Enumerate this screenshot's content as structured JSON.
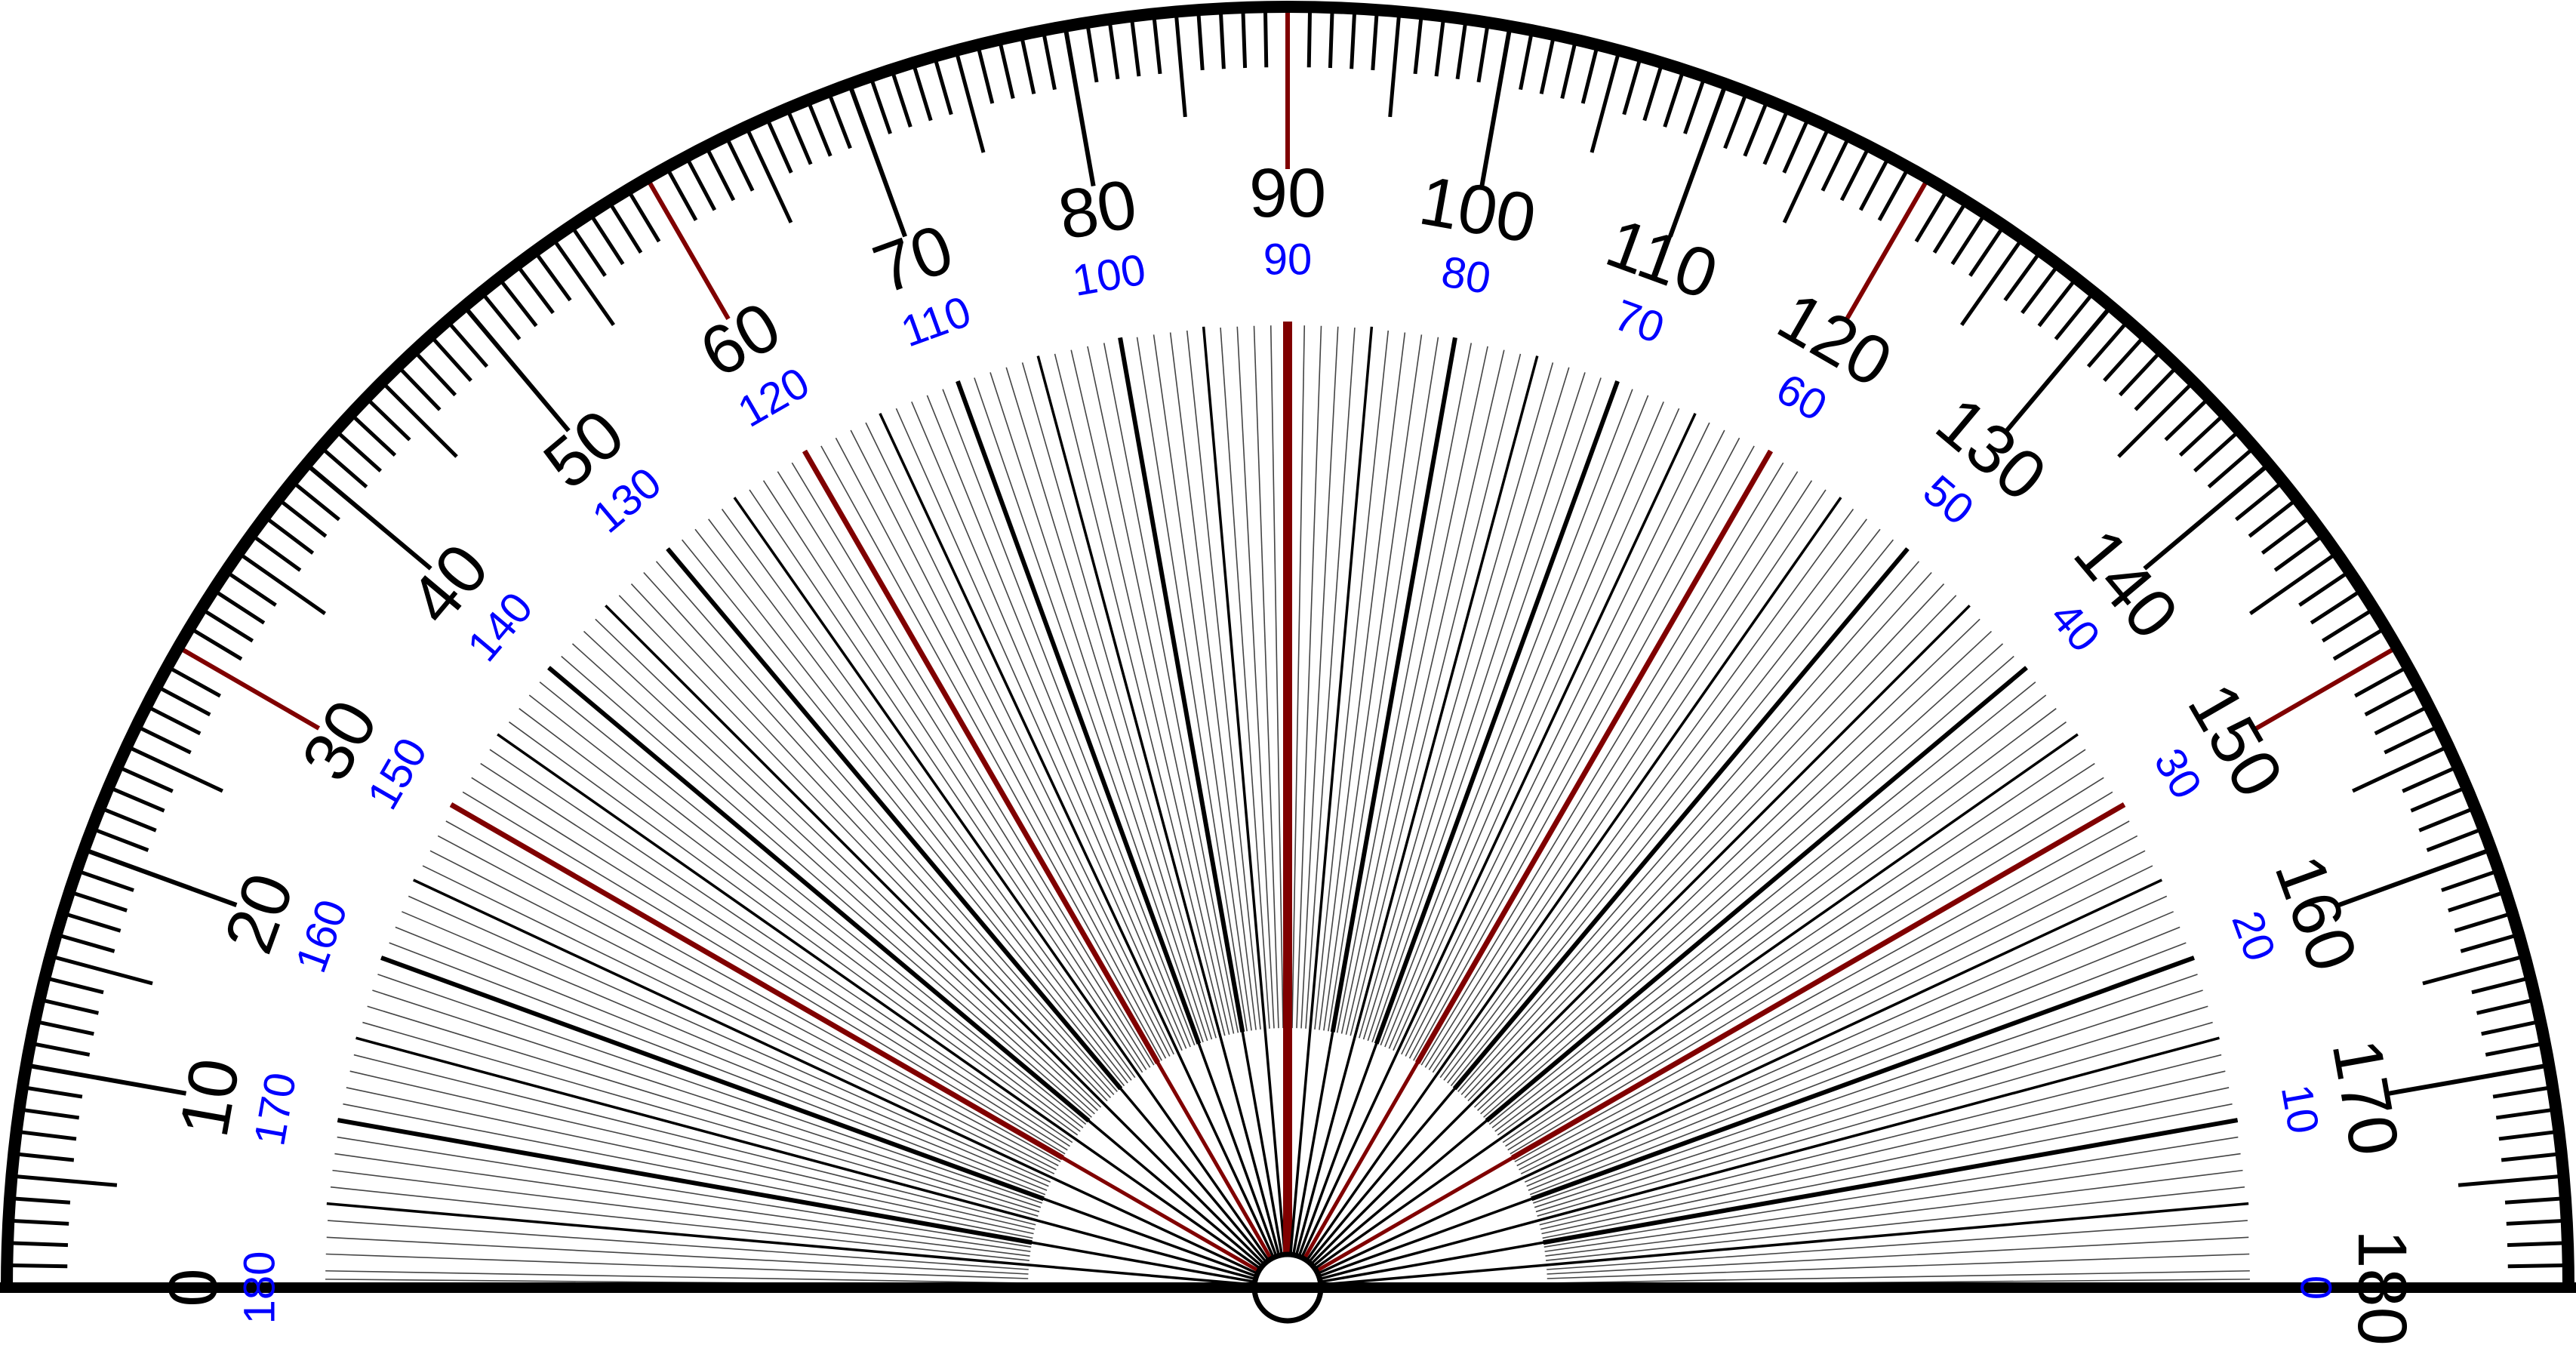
{
  "protractor": {
    "outer_scale_labels": [
      "0",
      "10",
      "20",
      "30",
      "40",
      "50",
      "60",
      "70",
      "80",
      "90",
      "100",
      "110",
      "120",
      "130",
      "140",
      "150",
      "160",
      "170",
      "180"
    ],
    "inner_scale_labels": [
      "180",
      "170",
      "160",
      "150",
      "140",
      "130",
      "120",
      "110",
      "100",
      "90",
      "80",
      "70",
      "60",
      "50",
      "40",
      "30",
      "20",
      "10",
      "0"
    ],
    "highlight_angles": [
      30,
      60,
      90,
      120,
      150
    ],
    "colors": {
      "outer_labels": "#000000",
      "inner_labels": "#0000ff",
      "highlight_lines": "#800000",
      "ticks": "#000000"
    }
  }
}
